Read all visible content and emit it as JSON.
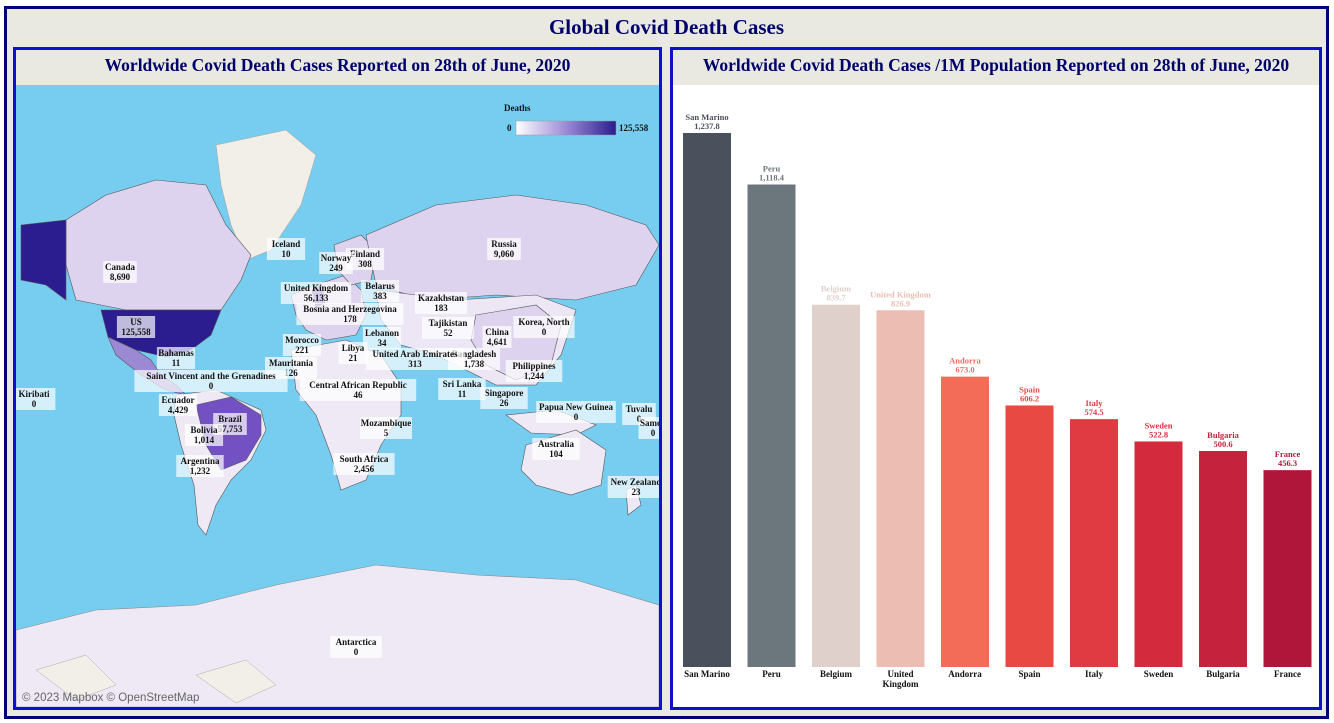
{
  "dashboard": {
    "title": "Global Covid Death Cases"
  },
  "map_panel": {
    "title": "Worldwide Covid Death Cases Reported on 28th of June, 2020",
    "credit": "© 2023 Mapbox © OpenStreetMap",
    "legend": {
      "title": "Deaths",
      "min_label": "0",
      "max_label": "125,558",
      "min": 0,
      "max": 125558
    },
    "colors": {
      "ocean": "#76cdf0",
      "land": "#f2efe9",
      "low": "#efe9f6",
      "high": "#2b1c8f"
    }
  },
  "bar_panel": {
    "title": "Worldwide Covid Death Cases /1M Population Reported on 28th of June, 2020"
  },
  "chart_data": [
    {
      "type": "map",
      "title": "Worldwide Covid Death Cases Reported on 28th of June, 2020",
      "legend_title": "Deaths",
      "range": [
        0,
        125558
      ],
      "regions": [
        {
          "name": "US",
          "value": 125558,
          "label": "125,558"
        },
        {
          "name": "Brazil",
          "value": 57753,
          "label": "57,753"
        },
        {
          "name": "United Kingdom",
          "value": 56133,
          "label": "56,133"
        },
        {
          "name": "Bosnia and Herzegovina",
          "value": 178,
          "label": "178"
        },
        {
          "name": "Russia",
          "value": 9060,
          "label": "9,060"
        },
        {
          "name": "Canada",
          "value": 8690,
          "label": "8,690"
        },
        {
          "name": "China",
          "value": 4641,
          "label": "4,641"
        },
        {
          "name": "Ecuador",
          "value": 4429,
          "label": "4,429"
        },
        {
          "name": "South Africa",
          "value": 2456,
          "label": "2,456"
        },
        {
          "name": "Bangladesh",
          "value": 1738,
          "label": "1,738"
        },
        {
          "name": "Philippines",
          "value": 1244,
          "label": "1,244"
        },
        {
          "name": "Argentina",
          "value": 1232,
          "label": "1,232"
        },
        {
          "name": "Bolivia",
          "value": 1014,
          "label": "1,014"
        },
        {
          "name": "Belarus",
          "value": 383,
          "label": "383"
        },
        {
          "name": "United Arab Emirates",
          "value": 313,
          "label": "313"
        },
        {
          "name": "Finland",
          "value": 308,
          "label": "308"
        },
        {
          "name": "Norway",
          "value": 249,
          "label": "249"
        },
        {
          "name": "Morocco",
          "value": 221,
          "label": "221"
        },
        {
          "name": "Kazakhstan",
          "value": 183,
          "label": "183"
        },
        {
          "name": "Mauritania",
          "value": 126,
          "label": "126"
        },
        {
          "name": "Australia",
          "value": 104,
          "label": "104"
        },
        {
          "name": "Central African Republic",
          "value": 46,
          "label": "46"
        },
        {
          "name": "Lebanon",
          "value": 34,
          "label": "34"
        },
        {
          "name": "Tajikistan",
          "value": 52,
          "label": "52"
        },
        {
          "name": "Singapore",
          "value": 26,
          "label": "26"
        },
        {
          "name": "New Zealand",
          "value": 23,
          "label": "23"
        },
        {
          "name": "Libya",
          "value": 21,
          "label": "21"
        },
        {
          "name": "Bahamas",
          "value": 11,
          "label": "11"
        },
        {
          "name": "Sri Lanka",
          "value": 11,
          "label": "11"
        },
        {
          "name": "Iceland",
          "value": 10,
          "label": "10"
        },
        {
          "name": "Mozambique",
          "value": 5,
          "label": "5"
        },
        {
          "name": "Saint Vincent and the Grenadines",
          "value": 0,
          "label": "0"
        },
        {
          "name": "Kiribati",
          "value": 0,
          "label": "0"
        },
        {
          "name": "Korea, North",
          "value": 0,
          "label": "0"
        },
        {
          "name": "Papua New Guinea",
          "value": 0,
          "label": "0"
        },
        {
          "name": "Tuvalu",
          "value": 0,
          "label": "0"
        },
        {
          "name": "Samoa",
          "value": 0,
          "label": "0"
        },
        {
          "name": "Antarctica",
          "value": 0,
          "label": "0"
        }
      ]
    },
    {
      "type": "bar",
      "title": "Worldwide Covid Death Cases /1M Population Reported on 28th of June, 2020",
      "categories": [
        "San Marino",
        "Peru",
        "Belgium",
        "United Kingdom",
        "Andorra",
        "Spain",
        "Italy",
        "Sweden",
        "Bulgaria",
        "France"
      ],
      "values": [
        1237.8,
        1118.4,
        839.7,
        826.9,
        673.0,
        606.2,
        574.5,
        522.8,
        500.6,
        456.3
      ],
      "value_labels": [
        "1,237.8",
        "1,118.4",
        "839.7",
        "826.9",
        "673.0",
        "606.2",
        "574.5",
        "522.8",
        "500.6",
        "456.3"
      ],
      "colors": [
        "#4a505c",
        "#6b777d",
        "#e0d0cc",
        "#ecbdb3",
        "#f26c58",
        "#e84a43",
        "#e03a43",
        "#d42a3e",
        "#c5223d",
        "#b0163a"
      ],
      "ylim": [
        0,
        1237.8
      ]
    }
  ]
}
